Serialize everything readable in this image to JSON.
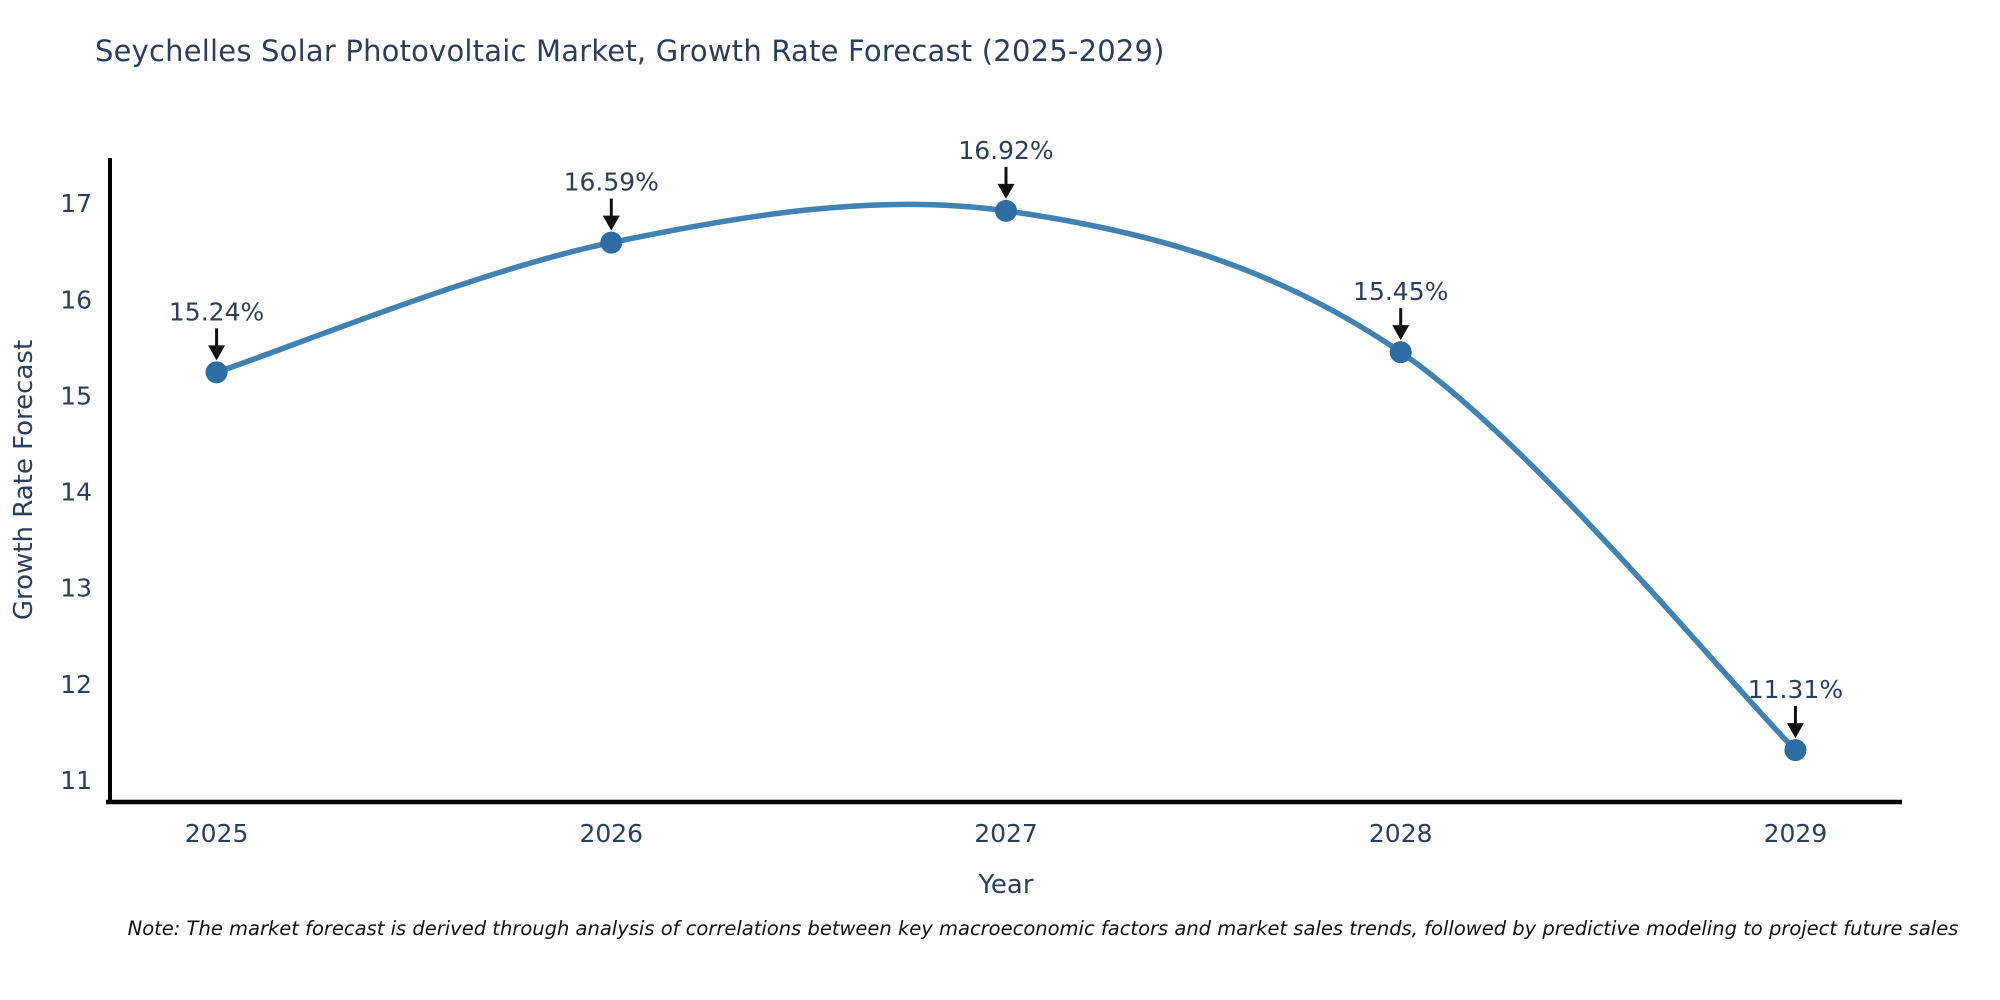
{
  "title": "Seychelles Solar Photovoltaic Market, Growth Rate Forecast (2025-2029)",
  "note": "Note: The market forecast is derived through analysis of correlations between key macroeconomic factors and market sales trends, followed by predictive modeling to project future sales",
  "chart_data": {
    "type": "line",
    "line_shape": "spline",
    "title": "Seychelles Solar Photovoltaic Market, Growth Rate Forecast (2025-2029)",
    "xlabel": "Year",
    "ylabel": "Growth Rate Forecast",
    "x": [
      2025,
      2026,
      2027,
      2028,
      2029
    ],
    "values": [
      15.24,
      16.59,
      16.92,
      15.45,
      11.31
    ],
    "point_labels": [
      "15.24%",
      "16.59%",
      "16.92%",
      "15.45%",
      "11.31%"
    ],
    "x_tick_labels": [
      "2025",
      "2026",
      "2027",
      "2028",
      "2029"
    ],
    "y_tick_values": [
      11,
      12,
      13,
      14,
      15,
      16,
      17
    ],
    "y_tick_labels": [
      "11",
      "12",
      "13",
      "14",
      "15",
      "16",
      "17"
    ],
    "xlim": [
      2024.73,
      2029.27
    ],
    "ylim": [
      10.77,
      17.47
    ],
    "grid": false,
    "legend": "none",
    "annotations_have_arrows": true,
    "colors": {
      "line": "#3f82b3",
      "marker": "#2d6da3",
      "axis": "#000000",
      "tick_text": "#2a3f5f",
      "title_text": "#2a3f5f",
      "annotation_text": "#2a3f5f",
      "annotation_arrow": "#111111",
      "background": "#ffffff"
    }
  }
}
